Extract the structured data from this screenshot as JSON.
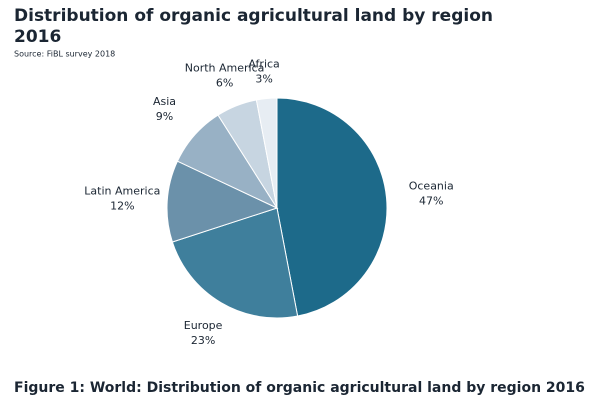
{
  "chart_data": {
    "type": "pie",
    "title": "Distribution of organic agricultural land by region",
    "subtitle": "2016",
    "source": "Source: FiBL survey 2018",
    "caption": "Figure 1: World: Distribution of organic agricultural land by region 2016",
    "categories": [
      "Oceania",
      "Europe",
      "Latin America",
      "Asia",
      "North America",
      "Africa"
    ],
    "values": [
      47,
      23,
      12,
      9,
      6,
      3
    ],
    "value_labels": [
      "47%",
      "23%",
      "12%",
      "9%",
      "6%",
      "3%"
    ],
    "colors": [
      "#1d6a8a",
      "#3f7f9c",
      "#6b91aa",
      "#98b1c5",
      "#c7d5e1",
      "#e7edf3"
    ]
  }
}
